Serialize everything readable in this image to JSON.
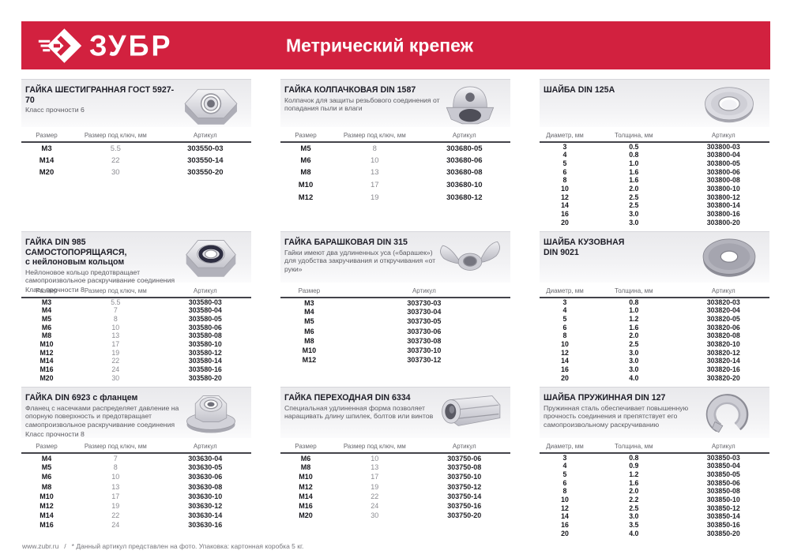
{
  "header": {
    "brand": "ЗУБР",
    "title": "Метрический крепеж"
  },
  "footer": {
    "site": "www.zubr.ru",
    "separator": "/",
    "note": "* Данный артикул представлен на фото. Упаковка: картонная коробка 5 кг."
  },
  "sections": [
    {
      "id": "hex-nut-gost-5927-70",
      "title": "ГАЙКА ШЕСТИГРАННАЯ ГОСТ 5927-70",
      "desc": "Класс прочности 6",
      "image": "hex-nut",
      "columns": [
        "Размер",
        "Размер под ключ, мм",
        "Артикул"
      ],
      "bold_mid": false,
      "rows": [
        [
          "M3",
          "5.5",
          "303550-03"
        ],
        [
          "M14",
          "22",
          "303550-14"
        ],
        [
          "M20",
          "30",
          "303550-20"
        ]
      ]
    },
    {
      "id": "cap-nut-din-1587",
      "title": "ГАЙКА КОЛПАЧКОВАЯ DIN 1587",
      "desc": "Колпачок для защиты резьбового соединения от попадания пыли и влаги",
      "image": "cap-nut",
      "columns": [
        "Размер",
        "Размер под ключ, мм",
        "Артикул"
      ],
      "bold_mid": false,
      "rows": [
        [
          "M5",
          "8",
          "303680-05"
        ],
        [
          "M6",
          "10",
          "303680-06"
        ],
        [
          "M8",
          "13",
          "303680-08"
        ],
        [
          "M10",
          "17",
          "303680-10"
        ],
        [
          "M12",
          "19",
          "303680-12"
        ]
      ]
    },
    {
      "id": "washer-din-125a",
      "title": "ШАЙБА DIN 125А",
      "image": "flat-washer",
      "columns": [
        "Диаметр, мм",
        "Толщина, мм",
        "Артикул"
      ],
      "bold_mid": true,
      "rows": [
        [
          "3",
          "0.5",
          "303800-03"
        ],
        [
          "4",
          "0.8",
          "303800-04"
        ],
        [
          "5",
          "1.0",
          "303800-05"
        ],
        [
          "6",
          "1.6",
          "303800-06"
        ],
        [
          "8",
          "1.6",
          "303800-08"
        ],
        [
          "10",
          "2.0",
          "303800-10"
        ],
        [
          "12",
          "2.5",
          "303800-12"
        ],
        [
          "14",
          "2.5",
          "303800-14"
        ],
        [
          "16",
          "3.0",
          "303800-16"
        ],
        [
          "20",
          "3.0",
          "303800-20"
        ]
      ]
    },
    {
      "id": "lock-nut-din-985",
      "title": "ГАЙКА DIN 985 САМОСТОПОРЯЩАЯСЯ,",
      "title2": "с нейлоновым кольцом",
      "desc": "Нейлоновое кольцо предотвращает самопроизвольное раскручивание соединения",
      "desc2": "Класс прочности 8",
      "image": "nylon-nut",
      "columns": [
        "Размер",
        "Размер под ключ, мм",
        "Артикул"
      ],
      "bold_mid": false,
      "rows": [
        [
          "M3",
          "5.5",
          "303580-03"
        ],
        [
          "M4",
          "7",
          "303580-04"
        ],
        [
          "M5",
          "8",
          "303580-05"
        ],
        [
          "M6",
          "10",
          "303580-06"
        ],
        [
          "M8",
          "13",
          "303580-08"
        ],
        [
          "M10",
          "17",
          "303580-10"
        ],
        [
          "M12",
          "19",
          "303580-12"
        ],
        [
          "M14",
          "22",
          "303580-14"
        ],
        [
          "M16",
          "24",
          "303580-16"
        ],
        [
          "M20",
          "30",
          "303580-20"
        ]
      ]
    },
    {
      "id": "wing-nut-din-315",
      "title": "ГАЙКА БАРАШКОВАЯ DIN 315",
      "desc": "Гайки имеют два удлиненных уса («барашек») для удобства закручивания и откручивания «от руки»",
      "image": "wing-nut",
      "columns": [
        "Размер",
        "Артикул"
      ],
      "bold_mid": false,
      "rows": [
        [
          "M3",
          "303730-03"
        ],
        [
          "M4",
          "303730-04"
        ],
        [
          "M5",
          "303730-05"
        ],
        [
          "M6",
          "303730-06"
        ],
        [
          "M8",
          "303730-08"
        ],
        [
          "M10",
          "303730-10"
        ],
        [
          "M12",
          "303730-12"
        ]
      ]
    },
    {
      "id": "body-washer-din-9021",
      "title": "ШАЙБА КУЗОВНАЯ",
      "title2": "DIN 9021",
      "image": "body-washer",
      "columns": [
        "Диаметр, мм",
        "Толщина, мм",
        "Артикул"
      ],
      "bold_mid": true,
      "rows": [
        [
          "3",
          "0.8",
          "303820-03"
        ],
        [
          "4",
          "1.0",
          "303820-04"
        ],
        [
          "5",
          "1.2",
          "303820-05"
        ],
        [
          "6",
          "1.6",
          "303820-06"
        ],
        [
          "8",
          "2.0",
          "303820-08"
        ],
        [
          "10",
          "2.5",
          "303820-10"
        ],
        [
          "12",
          "3.0",
          "303820-12"
        ],
        [
          "14",
          "3.0",
          "303820-14"
        ],
        [
          "16",
          "3.0",
          "303820-16"
        ],
        [
          "20",
          "4.0",
          "303820-20"
        ]
      ]
    },
    {
      "id": "flange-nut-din-6923",
      "title": "ГАЙКА DIN 6923 с фланцем",
      "desc": "Фланец с насечками распределяет давление на опорную поверхность и предотвращает самопроизвольное раскручивание соединения",
      "desc2": "Класс прочности 8",
      "image": "flange-nut",
      "columns": [
        "Размер",
        "Размер под ключ, мм",
        "Артикул"
      ],
      "bold_mid": false,
      "rows": [
        [
          "M4",
          "7",
          "303630-04"
        ],
        [
          "M5",
          "8",
          "303630-05"
        ],
        [
          "M6",
          "10",
          "303630-06"
        ],
        [
          "M8",
          "13",
          "303630-08"
        ],
        [
          "M10",
          "17",
          "303630-10"
        ],
        [
          "M12",
          "19",
          "303630-12"
        ],
        [
          "M14",
          "22",
          "303630-14"
        ],
        [
          "M16",
          "24",
          "303630-16"
        ]
      ]
    },
    {
      "id": "coupling-nut-din-6334",
      "title": "ГАЙКА ПЕРЕХОДНАЯ DIN 6334",
      "desc": "Специальная удлиненная форма позволяет наращивать длину шпилек, болтов или винтов",
      "image": "coupling-nut",
      "columns": [
        "Размер",
        "Размер под ключ, мм",
        "Артикул"
      ],
      "bold_mid": false,
      "rows": [
        [
          "M6",
          "10",
          "303750-06"
        ],
        [
          "M8",
          "13",
          "303750-08"
        ],
        [
          "M10",
          "17",
          "303750-10"
        ],
        [
          "M12",
          "19",
          "303750-12"
        ],
        [
          "M14",
          "22",
          "303750-14"
        ],
        [
          "M16",
          "24",
          "303750-16"
        ],
        [
          "M20",
          "30",
          "303750-20"
        ]
      ]
    },
    {
      "id": "spring-washer-din-127",
      "title": "ШАЙБА ПРУЖИННАЯ DIN 127",
      "desc": "Пружинная сталь обеспечивает повышенную прочность соединения и препятствует его самопроизвольному раскручиванию",
      "image": "spring-washer",
      "columns": [
        "Диаметр, мм",
        "Толщина, мм",
        "Артикул"
      ],
      "bold_mid": true,
      "rows": [
        [
          "3",
          "0.8",
          "303850-03"
        ],
        [
          "4",
          "0.9",
          "303850-04"
        ],
        [
          "5",
          "1.2",
          "303850-05"
        ],
        [
          "6",
          "1.6",
          "303850-06"
        ],
        [
          "8",
          "2.0",
          "303850-08"
        ],
        [
          "10",
          "2.2",
          "303850-10"
        ],
        [
          "12",
          "2.5",
          "303850-12"
        ],
        [
          "14",
          "3.0",
          "303850-14"
        ],
        [
          "16",
          "3.5",
          "303850-16"
        ],
        [
          "20",
          "4.0",
          "303850-20"
        ]
      ]
    }
  ]
}
